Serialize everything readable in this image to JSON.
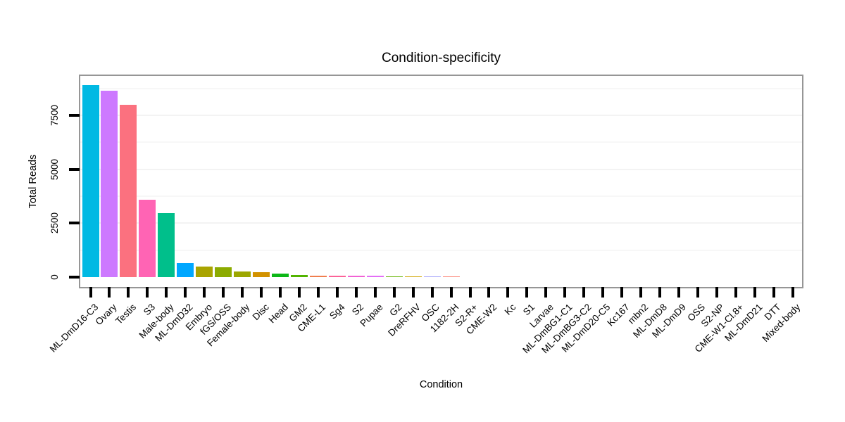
{
  "chart_data": {
    "type": "bar",
    "title": "Condition-specificity",
    "xlabel": "Condition",
    "ylabel": "Total Reads",
    "ylim": [
      0,
      9322
    ],
    "yticks": [
      0,
      2500,
      5000,
      7500
    ],
    "grid": "horizontal only, very faint; minor lines at 1250-unit intervals",
    "legend": "none",
    "panel_border_color": "#969696",
    "tick_color": "#000000",
    "bars": [
      {
        "label": "ML-DmD16-C3",
        "value": 8900,
        "color": "#00B9E3"
      },
      {
        "label": "Ovary",
        "value": 8650,
        "color": "#CD79FF"
      },
      {
        "label": "Testis",
        "value": 8000,
        "color": "#FB717F"
      },
      {
        "label": "S3",
        "value": 3600,
        "color": "#FF64B4"
      },
      {
        "label": "Male-body",
        "value": 2950,
        "color": "#00BF8B"
      },
      {
        "label": "ML-DmD32",
        "value": 650,
        "color": "#00A7FF"
      },
      {
        "label": "Embryo",
        "value": 490,
        "color": "#A9A400"
      },
      {
        "label": "fGS/OSS",
        "value": 460,
        "color": "#8CAB00"
      },
      {
        "label": "Female-body",
        "value": 245,
        "color": "#9CA700"
      },
      {
        "label": "Disc",
        "value": 230,
        "color": "#D29200"
      },
      {
        "label": "Head",
        "value": 155,
        "color": "#0CB717"
      },
      {
        "label": "GM2",
        "value": 100,
        "color": "#52B400"
      },
      {
        "label": "CME-L1",
        "value": 70,
        "color": "#F07E4E"
      },
      {
        "label": "Sg4",
        "value": 65,
        "color": "#FC6398"
      },
      {
        "label": "S2",
        "value": 60,
        "color": "#F162D4"
      },
      {
        "label": "Pupae",
        "value": 50,
        "color": "#E36EF6"
      },
      {
        "label": "G2",
        "value": 30,
        "color": "#64B200"
      },
      {
        "label": "DreRFHV",
        "value": 30,
        "color": "#D0A400"
      },
      {
        "label": "OSC",
        "value": 25,
        "color": "#A3A1FB"
      },
      {
        "label": "1182-2H",
        "value": 25,
        "color": "#FC8173"
      },
      {
        "label": "S2-R+",
        "value": 0,
        "color": null
      },
      {
        "label": "CME-W2",
        "value": 0,
        "color": null
      },
      {
        "label": "Kc",
        "value": 0,
        "color": null
      },
      {
        "label": "S1",
        "value": 0,
        "color": null
      },
      {
        "label": "Larvae",
        "value": 0,
        "color": null
      },
      {
        "label": "ML-DmBG1-C1",
        "value": 0,
        "color": null
      },
      {
        "label": "ML-DmBG3-C2",
        "value": 0,
        "color": null
      },
      {
        "label": "ML-DmD20-C5",
        "value": 0,
        "color": null
      },
      {
        "label": "Kc167",
        "value": 0,
        "color": null
      },
      {
        "label": "mbn2",
        "value": 0,
        "color": null
      },
      {
        "label": "ML-DmD8",
        "value": 0,
        "color": null
      },
      {
        "label": "ML-DmD9",
        "value": 0,
        "color": null
      },
      {
        "label": "OSS",
        "value": 0,
        "color": null
      },
      {
        "label": "S2-NP",
        "value": 0,
        "color": null
      },
      {
        "label": "CME-W1-Cl.8+",
        "value": 0,
        "color": null
      },
      {
        "label": "ML-DmD21",
        "value": 0,
        "color": null
      },
      {
        "label": "DTT",
        "value": 0,
        "color": null
      },
      {
        "label": "Mixed-body",
        "value": 0,
        "color": null
      }
    ],
    "gridlines_minor": [
      1250,
      3750,
      6250,
      8750
    ],
    "gridlines_major": [
      2500,
      5000,
      7500
    ]
  }
}
